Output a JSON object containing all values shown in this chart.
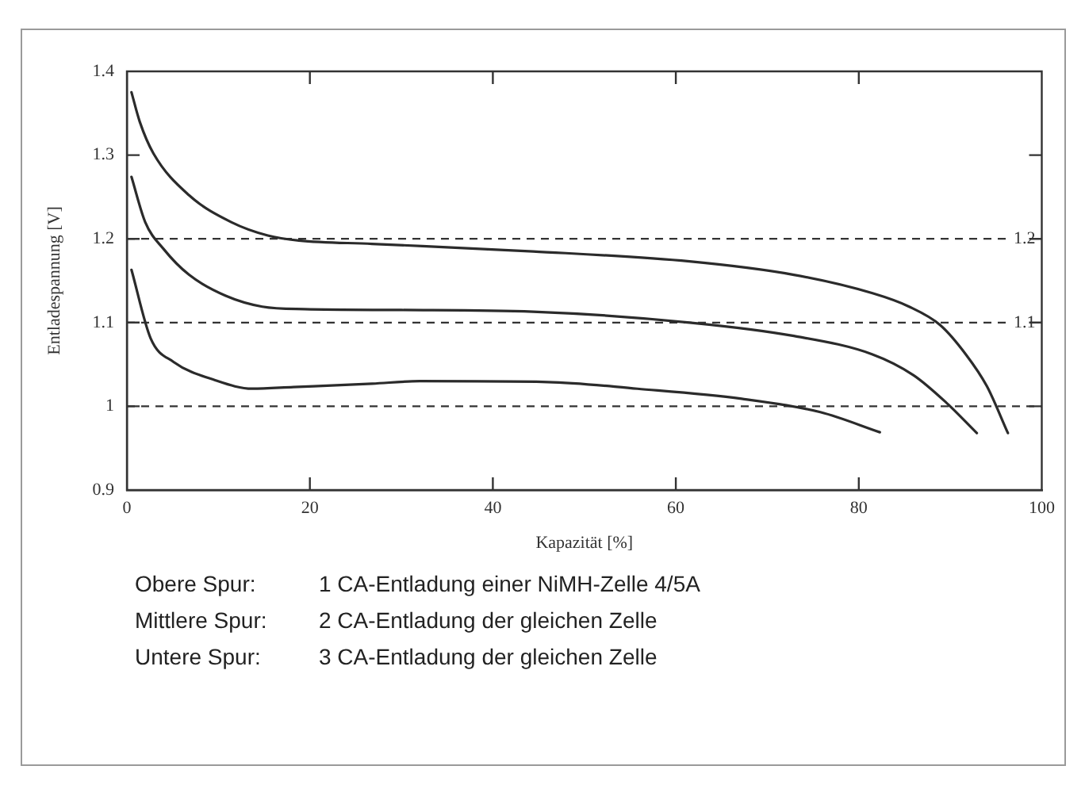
{
  "chart_data": {
    "type": "line",
    "xlabel": "Kapazität [%]",
    "ylabel": "Entladespannung [V]",
    "xlim": [
      0,
      100
    ],
    "ylim": [
      0.9,
      1.4
    ],
    "xticks": [
      0,
      20,
      40,
      60,
      80,
      100
    ],
    "yticks": [
      0.9,
      1,
      1.1,
      1.2,
      1.3,
      1.4
    ],
    "grid": false,
    "legend": false,
    "marker": "none",
    "line_style": "solid",
    "series": [
      {
        "color": "#2b2b2b",
        "x": [
          0.5,
          1.4,
          2.9,
          6.8,
          11.4,
          15.4,
          18.8,
          26.8,
          44.4,
          61.5,
          72.9,
          81.5,
          85.5,
          88.9,
          91.7,
          94,
          96.3
        ],
        "values": [
          1.375,
          1.34,
          1.302,
          1.252,
          1.22,
          1.204,
          1.198,
          1.194,
          1.185,
          1.173,
          1.157,
          1.135,
          1.119,
          1.097,
          1.062,
          1.024,
          0.968
        ]
      },
      {
        "color": "#2b2b2b",
        "x": [
          0.5,
          2,
          4,
          6.8,
          10.8,
          14.8,
          19.4,
          30,
          44.4,
          61.5,
          72.9,
          81.5,
          86,
          89.5,
          92.9
        ],
        "values": [
          1.274,
          1.22,
          1.188,
          1.157,
          1.132,
          1.119,
          1.116,
          1.115,
          1.113,
          1.1,
          1.084,
          1.062,
          1.037,
          1.005,
          0.968
        ]
      },
      {
        "color": "#2b2b2b",
        "x": [
          0.5,
          2.6,
          5.1,
          9.7,
          13.7,
          18.2,
          26.8,
          32,
          46,
          55.8,
          67.2,
          75.8,
          82.3
        ],
        "values": [
          1.163,
          1.081,
          1.053,
          1.031,
          1.021,
          1.023,
          1.027,
          1.03,
          1.029,
          1.021,
          1.009,
          0.993,
          0.969
        ]
      }
    ],
    "ref_lines": [
      {
        "axis": "y",
        "value": 1.2,
        "label": "1.2",
        "line_style": "dashed"
      },
      {
        "axis": "y",
        "value": 1.1,
        "label": "1.1",
        "line_style": "dashed"
      },
      {
        "axis": "y",
        "value": 1,
        "line_style": "dashed"
      }
    ],
    "annotations": [
      "Obere Spur: 1 CA-Entladung einer NiMH-Zelle 4/5A",
      "Mittlere Spur: 2 CA-Entladung der gleichen Zelle",
      "Untere Spur: 3 CA-Entladung der gleichen Zelle"
    ]
  }
}
